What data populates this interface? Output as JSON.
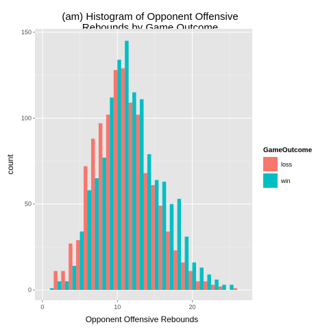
{
  "chart_data": {
    "type": "bar",
    "title_line1": "(am) Histogram of Opponent Offensive",
    "title_line2": "Rebounds by Game Outcome",
    "xlabel": "Opponent Offensive Rebounds",
    "ylabel": "count",
    "xlim": [
      -1,
      28
    ],
    "ylim": [
      -6,
      152
    ],
    "x_ticks": [
      0,
      10,
      20
    ],
    "y_ticks": [
      0,
      50,
      100,
      150
    ],
    "grid": true,
    "bin_width": 1,
    "legend": {
      "title": "GameOutcome",
      "position": "right",
      "items": [
        {
          "label": "loss",
          "color": "#F8766D"
        },
        {
          "label": "win",
          "color": "#00BFC4"
        }
      ]
    },
    "series": [
      {
        "name": "loss",
        "color": "#F8766D",
        "x": [
          2,
          3,
          4,
          5,
          6,
          7,
          8,
          9,
          10,
          11,
          12,
          13,
          14,
          15,
          16,
          17,
          18,
          19,
          20,
          21,
          22,
          23,
          24,
          26
        ],
        "values": [
          11,
          11,
          27,
          29,
          72,
          88,
          97,
          102,
          128,
          129,
          109,
          102,
          68,
          61,
          49,
          34,
          23,
          16,
          11,
          5,
          5,
          3,
          2,
          1
        ]
      },
      {
        "name": "win",
        "color": "#00BFC4",
        "x": [
          1,
          2,
          3,
          4,
          5,
          6,
          7,
          8,
          9,
          10,
          11,
          12,
          13,
          14,
          15,
          16,
          17,
          18,
          19,
          20,
          21,
          22,
          23,
          24,
          25
        ],
        "values": [
          1,
          5,
          5,
          14,
          34,
          58,
          65,
          77,
          112,
          134,
          145,
          115,
          111,
          79,
          64,
          63,
          50,
          53,
          31,
          16,
          13,
          9,
          6,
          3,
          3
        ]
      }
    ]
  }
}
